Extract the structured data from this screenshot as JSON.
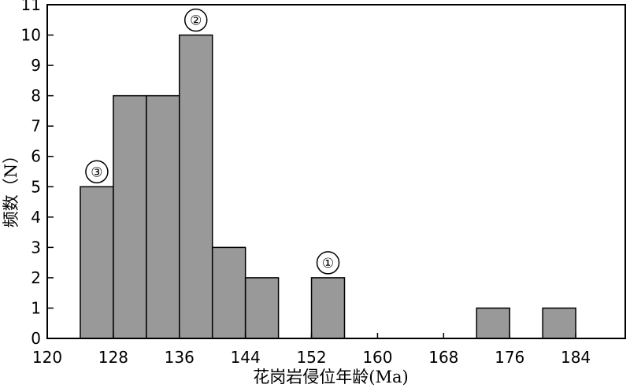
{
  "chart_data": {
    "type": "bar",
    "xlabel": "花岗岩侵位年龄(Ma)",
    "ylabel": "频数（N）",
    "xlim": [
      120,
      190
    ],
    "ylim": [
      0,
      11
    ],
    "xticks": [
      "120",
      "128",
      "136",
      "144",
      "152",
      "160",
      "168",
      "176",
      "184"
    ],
    "yticks": [
      "0",
      "1",
      "2",
      "3",
      "4",
      "5",
      "6",
      "7",
      "8",
      "9",
      "10",
      "11"
    ],
    "bins": [
      {
        "start": 124,
        "end": 128,
        "value": 5
      },
      {
        "start": 128,
        "end": 132,
        "value": 8
      },
      {
        "start": 132,
        "end": 136,
        "value": 8
      },
      {
        "start": 136,
        "end": 140,
        "value": 10
      },
      {
        "start": 140,
        "end": 144,
        "value": 3
      },
      {
        "start": 144,
        "end": 148,
        "value": 2
      },
      {
        "start": 152,
        "end": 156,
        "value": 2
      },
      {
        "start": 172,
        "end": 176,
        "value": 1
      },
      {
        "start": 180,
        "end": 184,
        "value": 1
      }
    ],
    "annotations": [
      {
        "label": "③",
        "bin": 0
      },
      {
        "label": "②",
        "bin": 3
      },
      {
        "label": "①",
        "bin": 6
      }
    ],
    "grid": false,
    "legend": "none"
  }
}
